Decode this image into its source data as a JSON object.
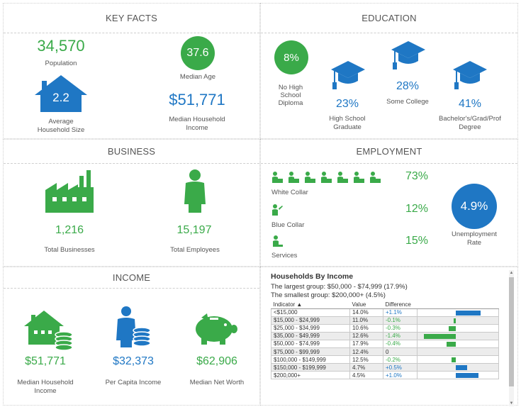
{
  "key_facts": {
    "title": "KEY FACTS",
    "population": {
      "value": "34,570",
      "label": "Population"
    },
    "household_size": {
      "value": "2.2",
      "label_1": "Average",
      "label_2": "Household Size"
    },
    "median_age": {
      "value": "37.6",
      "label": "Median Age"
    },
    "median_income": {
      "value": "$51,771",
      "label_1": "Median Household",
      "label_2": "Income"
    }
  },
  "education": {
    "title": "EDUCATION",
    "no_hs": {
      "value": "8%",
      "label_1": "No High",
      "label_2": "School",
      "label_3": "Diploma"
    },
    "hs_grad": {
      "value": "23%",
      "label_1": "High School",
      "label_2": "Graduate"
    },
    "some_college": {
      "value": "28%",
      "label": "Some College"
    },
    "bachelors": {
      "value": "41%",
      "label_1": "Bachelor's/Grad/Prof",
      "label_2": "Degree"
    }
  },
  "business": {
    "title": "BUSINESS",
    "total_businesses": {
      "value": "1,216",
      "label": "Total Businesses"
    },
    "total_employees": {
      "value": "15,197",
      "label": "Total Employees"
    }
  },
  "employment": {
    "title": "EMPLOYMENT",
    "white_collar": {
      "value": "73%",
      "label": "White Collar"
    },
    "blue_collar": {
      "value": "12%",
      "label": "Blue Collar"
    },
    "services": {
      "value": "15%",
      "label": "Services"
    },
    "unemployment": {
      "value": "4.9%",
      "label_1": "Unemployment",
      "label_2": "Rate"
    }
  },
  "income": {
    "title": "INCOME",
    "median_household": {
      "value": "$51,771",
      "label_1": "Median Household",
      "label_2": "Income"
    },
    "per_capita": {
      "value": "$32,373",
      "label": "Per Capita Income"
    },
    "net_worth": {
      "value": "$62,906",
      "label": "Median Net Worth"
    }
  },
  "households": {
    "title": "Households By Income",
    "largest": "The largest group: $50,000 - $74,999 (17.9%)",
    "smallest": "The smallest group: $200,000+ (4.5%)",
    "columns": [
      "Indicator ▲",
      "Value",
      "Difference",
      ""
    ],
    "rows": [
      {
        "indicator": "<$15,000",
        "value": "14.0%",
        "difference": "+1.1%",
        "diff": 1.1
      },
      {
        "indicator": "$15,000 - $24,999",
        "value": "11.0%",
        "difference": "-0.1%",
        "diff": -0.1
      },
      {
        "indicator": "$25,000 - $34,999",
        "value": "10.6%",
        "difference": "-0.3%",
        "diff": -0.3
      },
      {
        "indicator": "$35,000 - $49,999",
        "value": "12.6%",
        "difference": "-1.4%",
        "diff": -1.4
      },
      {
        "indicator": "$50,000 - $74,999",
        "value": "17.9%",
        "difference": "-0.4%",
        "diff": -0.4
      },
      {
        "indicator": "$75,000 - $99,999",
        "value": "12.4%",
        "difference": "0",
        "diff": 0
      },
      {
        "indicator": "$100,000 - $149,999",
        "value": "12.5%",
        "difference": "-0.2%",
        "diff": -0.2
      },
      {
        "indicator": "$150,000 - $199,999",
        "value": "4.7%",
        "difference": "+0.5%",
        "diff": 0.5
      },
      {
        "indicator": "$200,000+",
        "value": "4.5%",
        "difference": "+1.0%",
        "diff": 1.0
      }
    ]
  },
  "colors": {
    "green": "#3aaa49",
    "blue": "#1f77c4"
  }
}
